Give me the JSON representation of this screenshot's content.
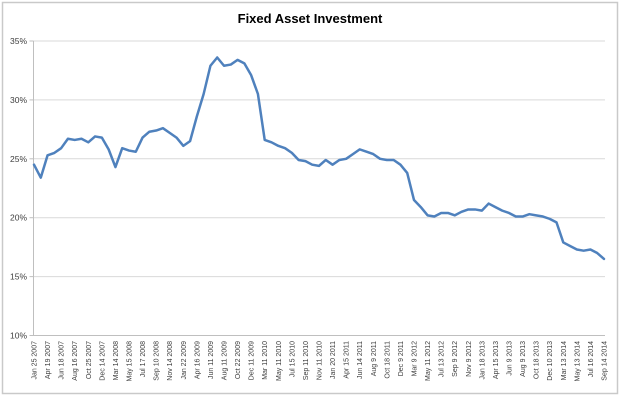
{
  "chart_data": {
    "type": "line",
    "title": "Fixed Asset Investment",
    "xlabel": "",
    "ylabel": "",
    "ylim": [
      10,
      35
    ],
    "yticks": [
      10,
      15,
      20,
      25,
      30,
      35
    ],
    "ytick_labels": [
      "10%",
      "15%",
      "20%",
      "25%",
      "30%",
      "35%"
    ],
    "grid": true,
    "legend": "none",
    "x_tick_labels": [
      "Jan 25 2007",
      "Apr 19 2007",
      "Jun 18 2007",
      "Aug 16 2007",
      "Oct 25 2007",
      "Dec 14 2007",
      "Mar 14 2008",
      "May 15 2008",
      "Jul 17 2008",
      "Sep 10 2008",
      "Nov 14 2008",
      "Jan 22 2009",
      "Apr 16 2009",
      "Jun 11 2009",
      "Aug 11 2009",
      "Oct 22 2009",
      "Dec 11 2009",
      "Mar 11 2010",
      "May 11 2010",
      "Jul 15 2010",
      "Sep 11 2010",
      "Nov 11 2010",
      "Jan 20 2011",
      "Apr 15 2011",
      "Jun 14 2011",
      "Aug 9 2011",
      "Oct 18 2011",
      "Dec 9 2011",
      "Mar 9 2012",
      "May 11 2012",
      "Jul 13 2012",
      "Sep 9 2012",
      "Nov 9 2012",
      "Jan 18 2013",
      "Apr 15 2013",
      "Jun 9 2013",
      "Aug 9 2013",
      "Oct 18 2013",
      "Dec 10 2013",
      "Mar 13 2014",
      "May 13 2014",
      "Jul 16 2014",
      "Sep 14 2014"
    ],
    "label_every_nth_point": 2,
    "series": [
      {
        "name": "Fixed Asset Investment",
        "color": "#4F81BD",
        "values": [
          24.5,
          23.4,
          25.3,
          25.5,
          25.9,
          26.7,
          26.6,
          26.7,
          26.4,
          26.9,
          26.8,
          25.8,
          24.3,
          25.9,
          25.7,
          25.6,
          26.8,
          27.3,
          27.4,
          27.6,
          27.2,
          26.8,
          26.1,
          26.5,
          28.6,
          30.5,
          32.9,
          33.6,
          32.9,
          33.0,
          33.4,
          33.1,
          32.1,
          30.5,
          26.6,
          26.4,
          26.1,
          25.9,
          25.5,
          24.9,
          24.8,
          24.5,
          24.4,
          24.9,
          24.5,
          24.9,
          25.0,
          25.4,
          25.8,
          25.6,
          25.4,
          25.0,
          24.9,
          24.9,
          24.5,
          23.8,
          21.5,
          20.9,
          20.2,
          20.1,
          20.4,
          20.4,
          20.2,
          20.5,
          20.7,
          20.7,
          20.6,
          21.2,
          20.9,
          20.6,
          20.4,
          20.1,
          20.1,
          20.3,
          20.2,
          20.1,
          19.9,
          19.6,
          17.9,
          17.6,
          17.3,
          17.2,
          17.3,
          17.0,
          16.5
        ]
      }
    ]
  },
  "colors": {
    "line": "#4F81BD",
    "gridline": "#D9D9D9",
    "axis": "#BFBFBF",
    "tick": "#BFBFBF",
    "text": "#3D3D3D",
    "chart_border": "#C9C9C9",
    "background": "#FFFFFF"
  }
}
